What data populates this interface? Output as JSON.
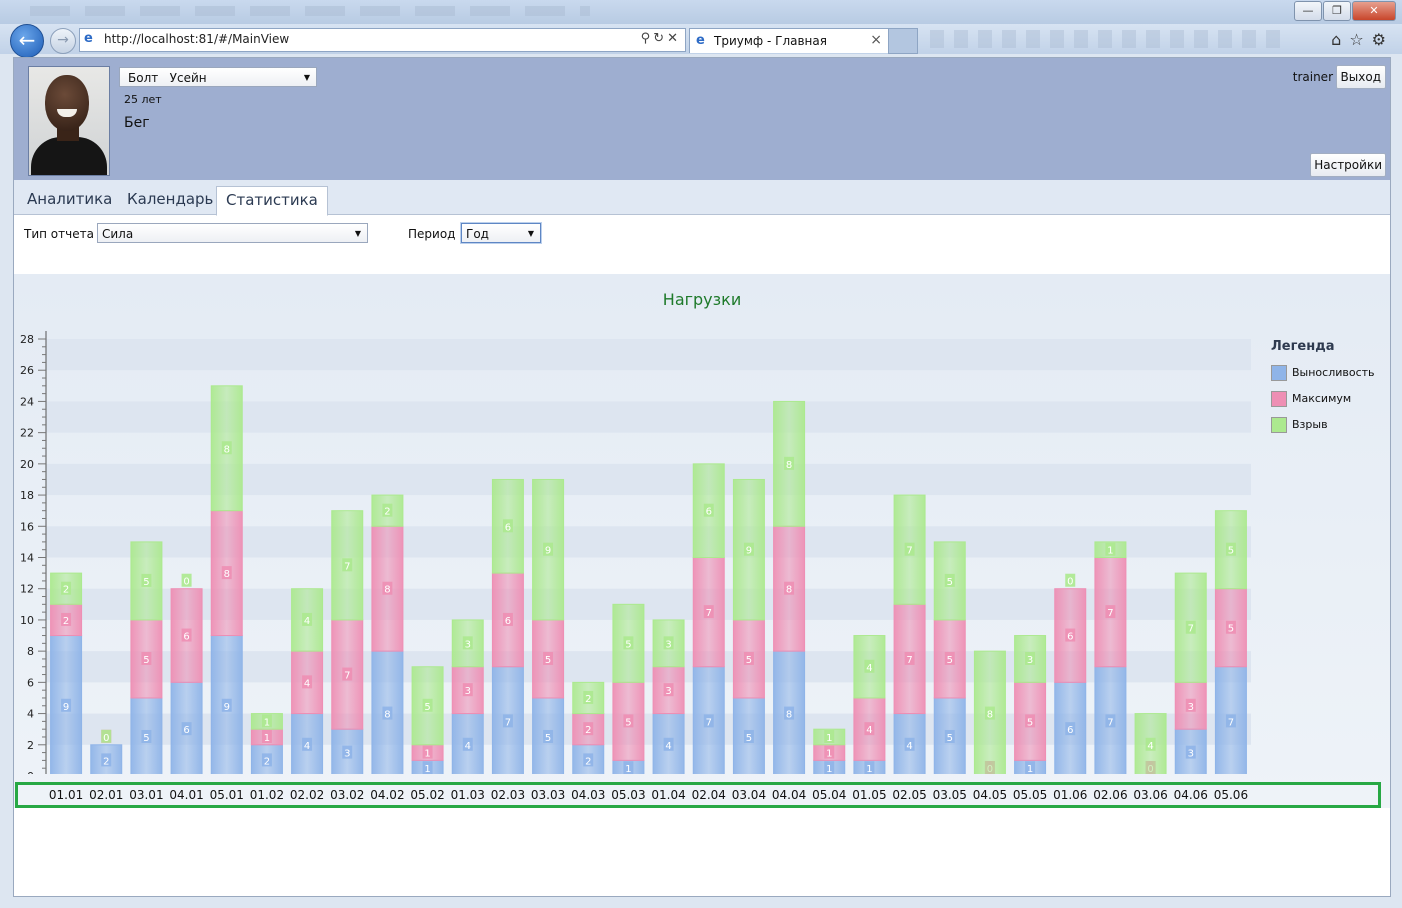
{
  "browser": {
    "url": "http://localhost:81/#/MainView",
    "tab_title": "Триумф - Главная",
    "window_buttons": [
      "—",
      "❐",
      "✕"
    ]
  },
  "header": {
    "athlete_select": "Болт   Усейн",
    "age": "25 лет",
    "sport": "Бег",
    "username": "trainer",
    "logout_label": "Выход",
    "settings_label": "Настройки"
  },
  "tabs": [
    {
      "label": "Аналитика",
      "active": false
    },
    {
      "label": "Календарь",
      "active": false
    },
    {
      "label": "Статистика",
      "active": true
    }
  ],
  "filters": {
    "report_type_label": "Тип отчета",
    "report_type_value": "Сила",
    "period_label": "Период",
    "period_value": "Год"
  },
  "chart_data": {
    "type": "bar",
    "stacked": true,
    "title": "Нагрузки",
    "legend_title": "Легенда",
    "legend_position": "right",
    "ylim": [
      0,
      28
    ],
    "yticks": [
      0,
      2,
      4,
      6,
      8,
      10,
      12,
      14,
      16,
      18,
      20,
      22,
      24,
      26,
      28
    ],
    "categories": [
      "01.01",
      "02.01",
      "03.01",
      "04.01",
      "05.01",
      "01.02",
      "02.02",
      "03.02",
      "04.02",
      "05.02",
      "01.03",
      "02.03",
      "03.03",
      "04.03",
      "05.03",
      "01.04",
      "02.04",
      "03.04",
      "04.04",
      "05.04",
      "01.05",
      "02.05",
      "03.05",
      "04.05",
      "05.05",
      "01.06",
      "02.06",
      "03.06",
      "04.06",
      "05.06"
    ],
    "series": [
      {
        "name": "Выносливость",
        "color": "#8fb4e8",
        "values": [
          9,
          2,
          5,
          6,
          9,
          2,
          4,
          3,
          8,
          1,
          4,
          7,
          5,
          2,
          1,
          4,
          7,
          5,
          8,
          1,
          1,
          4,
          5,
          0,
          1,
          6,
          7,
          0,
          3,
          7
        ]
      },
      {
        "name": "Максимум",
        "color": "#ee8fb4",
        "values": [
          2,
          0,
          5,
          6,
          8,
          1,
          4,
          7,
          8,
          1,
          3,
          6,
          5,
          2,
          5,
          3,
          7,
          5,
          8,
          1,
          4,
          7,
          5,
          0,
          5,
          6,
          7,
          0,
          3,
          5
        ]
      },
      {
        "name": "Взрыв",
        "color": "#ace98f",
        "values": [
          2,
          0,
          5,
          0,
          8,
          1,
          4,
          7,
          2,
          5,
          3,
          6,
          9,
          2,
          5,
          3,
          6,
          9,
          8,
          1,
          4,
          7,
          5,
          8,
          3,
          0,
          1,
          4,
          7,
          5
        ]
      }
    ]
  }
}
